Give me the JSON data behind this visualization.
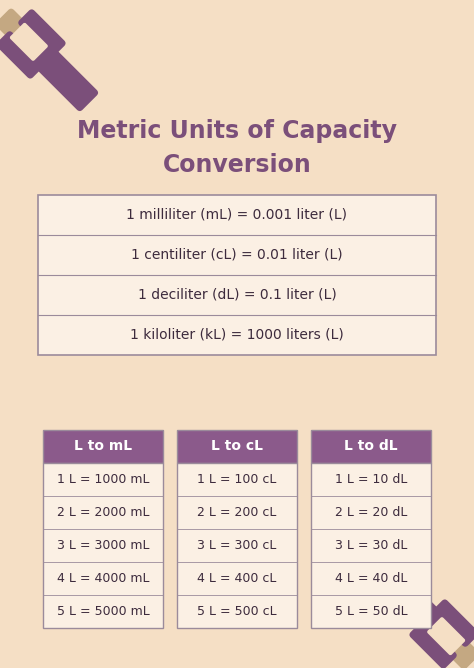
{
  "bg_color": "#F5DFC5",
  "title": "Metric Units of Capacity\nConversion",
  "title_color": "#7B4F7A",
  "title_fontsize": 17,
  "main_table_rows": [
    "1 milliliter (mL) = 0.001 liter (L)",
    "1 centiliter (cL) = 0.01 liter (L)",
    "1 deciliter (dL) = 0.1 liter (L)",
    "1 kiloliter (kL) = 1000 liters (L)"
  ],
  "main_table_text_color": "#3D2B3D",
  "main_table_border_color": "#9B8B9B",
  "main_table_bg": "#FBF0E4",
  "sub_tables": [
    {
      "header": "L to mL",
      "rows": [
        "1 L = 1000 mL",
        "2 L = 2000 mL",
        "3 L = 3000 mL",
        "4 L = 4000 mL",
        "5 L = 5000 mL"
      ]
    },
    {
      "header": "L to cL",
      "rows": [
        "1 L = 100 cL",
        "2 L = 200 cL",
        "3 L = 300 cL",
        "4 L = 400 cL",
        "5 L = 500 cL"
      ]
    },
    {
      "header": "L to dL",
      "rows": [
        "1 L = 10 dL",
        "2 L = 20 dL",
        "3 L = 30 dL",
        "4 L = 40 dL",
        "5 L = 50 dL"
      ]
    }
  ],
  "sub_table_header_color": "#8B5A8B",
  "sub_table_header_text_color": "#FFFFFF",
  "sub_table_row_text_color": "#3D2B3D",
  "sub_table_border_color": "#9B8B9B",
  "sub_table_bg": "#FBF0E4",
  "deco_color_purple": "#7B4F7A",
  "deco_color_tan": "#C4A882",
  "fig_w": 4.74,
  "fig_h": 6.68,
  "dpi": 100
}
